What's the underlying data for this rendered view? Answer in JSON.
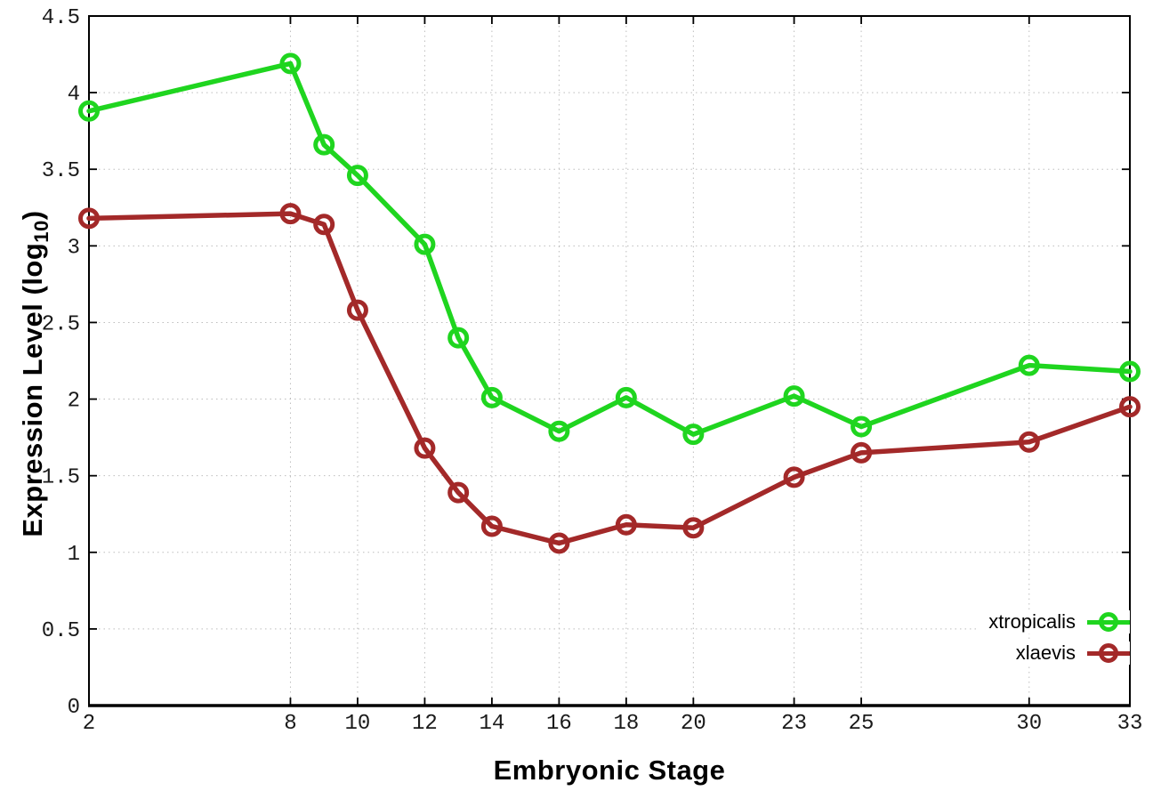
{
  "style": {
    "background": "#ffffff",
    "axis_color": "#000000",
    "grid_color": "#bdbdbd",
    "tick_label_color": "#1a1a1a"
  },
  "chart_data": {
    "type": "line",
    "title": "",
    "xlabel": "Embryonic Stage",
    "ylabel": {
      "text": "Expression Level (log",
      "subscript": "10",
      "suffix": ")"
    },
    "xlim": [
      2,
      33
    ],
    "ylim": [
      0,
      4.5
    ],
    "grid": true,
    "marker": "open-circle",
    "legend_position": "inside bottom-right",
    "x": [
      2,
      8,
      9,
      10,
      12,
      13,
      14,
      16,
      18,
      20,
      23,
      25,
      30,
      33
    ],
    "xticks": [
      2,
      8,
      10,
      12,
      14,
      16,
      18,
      20,
      23,
      25,
      30,
      33
    ],
    "xtick_labels": [
      "2",
      "8",
      "10",
      "12",
      "14",
      "16",
      "18",
      "20",
      "23",
      "25",
      "30",
      "33"
    ],
    "yticks": [
      0,
      0.5,
      1,
      1.5,
      2,
      2.5,
      3,
      3.5,
      4,
      4.5
    ],
    "ytick_labels": [
      "0",
      "0.5",
      "1",
      "1.5",
      "2",
      "2.5",
      "3",
      "3.5",
      "4",
      "4.5"
    ],
    "series": [
      {
        "name": "xtropicalis",
        "color": "#1fd51f",
        "values": [
          3.88,
          4.19,
          3.66,
          3.46,
          3.01,
          2.4,
          2.01,
          1.79,
          2.01,
          1.77,
          2.02,
          1.82,
          2.22,
          2.18
        ]
      },
      {
        "name": "xlaevis",
        "color": "#a32929",
        "values": [
          3.18,
          3.21,
          3.14,
          2.58,
          1.68,
          1.39,
          1.17,
          1.06,
          1.18,
          1.16,
          1.49,
          1.65,
          1.72,
          1.95
        ]
      }
    ]
  }
}
